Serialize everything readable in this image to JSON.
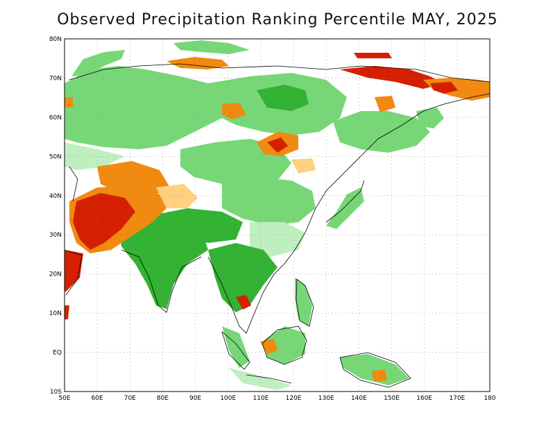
{
  "title": "Observed Precipitation Ranking Percentile MAY, 2025",
  "map": {
    "lon_range": [
      50,
      180
    ],
    "lat_range": [
      -10,
      80
    ],
    "lon_ticks": [
      "50E",
      "60E",
      "70E",
      "80E",
      "90E",
      "100E",
      "110E",
      "120E",
      "130E",
      "140E",
      "150E",
      "160E",
      "170E",
      "180"
    ],
    "lat_ticks": [
      "80N",
      "70N",
      "60N",
      "50N",
      "40N",
      "30N",
      "20N",
      "10N",
      "EQ",
      "10S"
    ],
    "gridlines": "dotted",
    "colors": {
      "very_wet": "#33b233",
      "wet": "#77d777",
      "slightly_wet": "#bfefbf",
      "slightly_dry": "#ffd080",
      "dry": "#f08a10",
      "very_dry": "#d42000",
      "coastline": "#000000"
    }
  }
}
